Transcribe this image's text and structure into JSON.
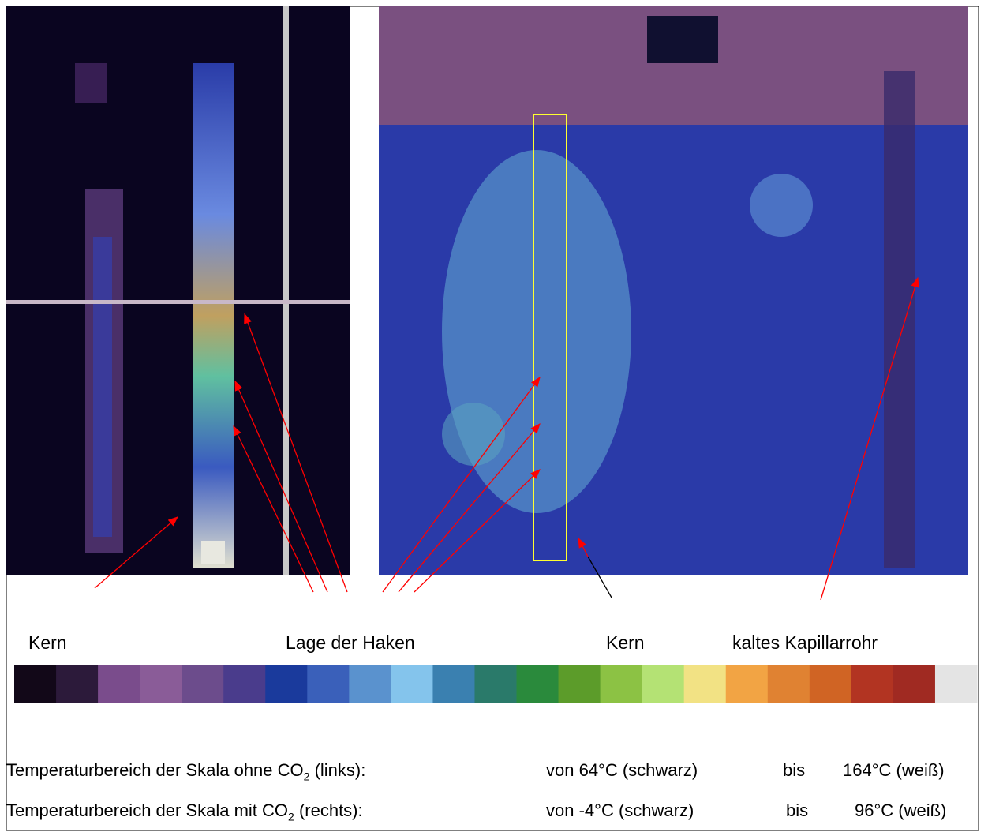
{
  "labels": [
    "Kern",
    "Lage der Haken",
    "Kern",
    "kaltes Kapillarrohr"
  ],
  "colorbar": [
    "#120818",
    "#2c1a3a",
    "#7a4c8c",
    "#8a5c98",
    "#6c4c8c",
    "#4a3c8c",
    "#1a3a9c",
    "#3a60ba",
    "#5a92ce",
    "#84c4ec",
    "#3a80b0",
    "#2a7a6a",
    "#2a8a3c",
    "#5c9c2a",
    "#8cc244",
    "#b4e274",
    "#f2e284",
    "#f2a444",
    "#e08232",
    "#d06424",
    "#b23422",
    "#a02a22",
    "#e4e4e4"
  ],
  "table": {
    "rows": [
      {
        "prefix": "Temperaturbereich der Skala ohne CO",
        "sub": "2",
        "suffix": " (links):",
        "from": "von 64°C (schwarz)",
        "bis": "bis",
        "to": "164°C (weiß)"
      },
      {
        "prefix": "Temperaturbereich der Skala mit CO",
        "sub": "2",
        "suffix": " (rechts):",
        "from": "von -4°C (schwarz)",
        "bis": "bis",
        "to": "96°C (weiß)"
      }
    ]
  }
}
